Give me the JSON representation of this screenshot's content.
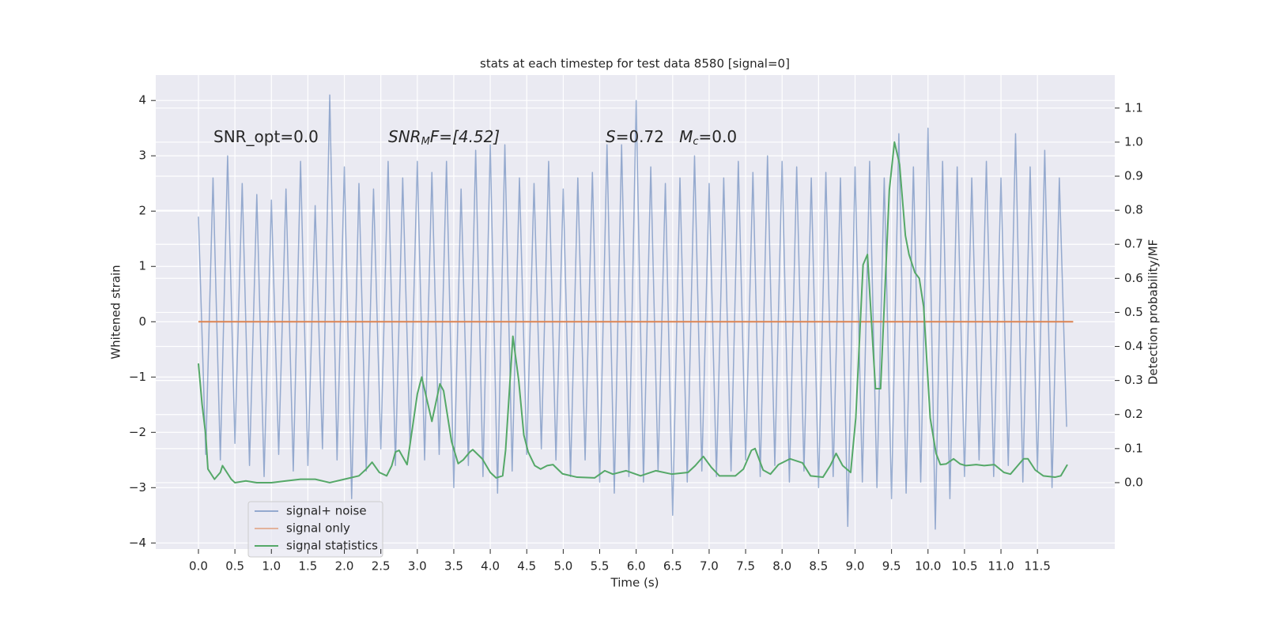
{
  "chart_data": {
    "type": "line",
    "title": "stats at each timestep for test data 8580 [signal=0]",
    "xlabel": "Time (s)",
    "ylabel": "Whitened strain",
    "y2label": "Detection probability/MF",
    "annotations": [
      {
        "parts": [
          "SNR_opt=0.0"
        ]
      },
      {
        "parts": [
          "SNR",
          "M",
          "F=[4.52]"
        ]
      },
      {
        "parts": [
          "S",
          "=0.72   ",
          "M",
          "c",
          "=0.0"
        ]
      }
    ],
    "xlim": [
      -0.585,
      12.56
    ],
    "ylim": [
      -4.11,
      4.46
    ],
    "y2lim": [
      -0.195,
      1.197
    ],
    "xticks": [
      {
        "value": 0,
        "label": "0.0"
      },
      0.5,
      {
        "value": 1,
        "label": "1.0"
      },
      1.5,
      {
        "value": 2,
        "label": "2.0"
      },
      2.5,
      {
        "value": 3,
        "label": "3.0"
      },
      3.5,
      {
        "value": 4,
        "label": "4.0"
      },
      4.5,
      {
        "value": 5,
        "label": "5.0"
      },
      5.5,
      {
        "value": 6,
        "label": "6.0"
      },
      6.5,
      {
        "value": 7,
        "label": "7.0"
      },
      7.5,
      {
        "value": 8,
        "label": "8.0"
      },
      8.5,
      {
        "value": 9,
        "label": "9.0"
      },
      9.5,
      {
        "value": 10,
        "label": "10.0"
      },
      10.5,
      {
        "value": 11,
        "label": "11.0"
      },
      11.5
    ],
    "yticks": [
      {
        "value": -4,
        "label": "−4"
      },
      {
        "value": -3,
        "label": "−3"
      },
      {
        "value": -2,
        "label": "−2"
      },
      {
        "value": -1,
        "label": "−1"
      },
      0,
      1,
      2,
      3,
      4
    ],
    "y2ticks": [
      {
        "value": 0,
        "label": "0.0"
      },
      0.1,
      0.2,
      0.3,
      0.4,
      0.5,
      0.6,
      0.7,
      0.8,
      0.9,
      {
        "value": 1,
        "label": "1.0"
      },
      1.1
    ],
    "grid": true,
    "legend": "lower left",
    "series": [
      {
        "name": "signal+ noise",
        "color": "#4c72b0",
        "x": [
          0.0,
          0.1,
          0.2,
          0.3,
          0.4,
          0.5,
          0.6,
          0.7,
          0.8,
          0.9,
          1.0,
          1.1,
          1.2,
          1.3,
          1.4,
          1.5,
          1.6,
          1.7,
          1.8,
          1.9,
          2.0,
          2.1,
          2.2,
          2.3,
          2.4,
          2.5,
          2.6,
          2.7,
          2.8,
          2.9,
          3.0,
          3.1,
          3.2,
          3.3,
          3.4,
          3.5,
          3.6,
          3.7,
          3.8,
          3.9,
          4.0,
          4.1,
          4.2,
          4.3,
          4.4,
          4.5,
          4.6,
          4.7,
          4.8,
          4.9,
          5.0,
          5.1,
          5.2,
          5.3,
          5.4,
          5.5,
          5.6,
          5.7,
          5.8,
          5.9,
          6.0,
          6.1,
          6.2,
          6.3,
          6.4,
          6.5,
          6.6,
          6.7,
          6.8,
          6.9,
          7.0,
          7.1,
          7.2,
          7.3,
          7.4,
          7.5,
          7.6,
          7.7,
          7.8,
          7.9,
          8.0,
          8.1,
          8.2,
          8.3,
          8.4,
          8.5,
          8.6,
          8.7,
          8.8,
          8.9,
          9.0,
          9.1,
          9.2,
          9.3,
          9.4,
          9.5,
          9.6,
          9.7,
          9.8,
          9.9,
          10.0,
          10.1,
          10.2,
          10.3,
          10.4,
          10.5,
          10.6,
          10.7,
          10.8,
          10.9,
          11.0,
          11.1,
          11.2,
          11.3,
          11.4,
          11.5,
          11.6,
          11.7,
          11.8,
          11.9
        ],
        "values": [
          1.9,
          -2.4,
          2.6,
          -2.5,
          3.0,
          -2.2,
          2.5,
          -2.6,
          2.3,
          -2.8,
          2.2,
          -2.4,
          2.4,
          -2.7,
          2.9,
          -2.6,
          2.1,
          -2.3,
          4.1,
          -2.5,
          2.8,
          -3.2,
          2.5,
          -2.7,
          2.4,
          -2.3,
          2.9,
          -2.6,
          2.6,
          -2.2,
          2.9,
          -2.5,
          2.7,
          -2.4,
          2.9,
          -3.0,
          2.4,
          -2.6,
          3.1,
          -2.8,
          3.2,
          -3.1,
          3.2,
          -2.7,
          2.6,
          -2.4,
          2.5,
          -2.3,
          2.9,
          -2.5,
          2.4,
          -2.8,
          2.6,
          -2.5,
          2.7,
          -2.9,
          3.2,
          -3.1,
          3.2,
          -2.8,
          4.0,
          -2.9,
          2.8,
          -2.7,
          2.5,
          -3.5,
          2.6,
          -2.9,
          3.0,
          -2.7,
          2.5,
          -2.8,
          2.6,
          -2.7,
          2.9,
          -2.5,
          2.7,
          -2.8,
          3.0,
          -2.6,
          2.9,
          -2.9,
          2.8,
          -2.7,
          2.6,
          -3.0,
          2.7,
          -2.8,
          2.6,
          -3.7,
          2.8,
          -2.9,
          2.9,
          -3.0,
          2.6,
          -3.2,
          3.4,
          -3.1,
          2.8,
          -2.9,
          3.5,
          -3.75,
          2.9,
          -3.2,
          2.8,
          -2.8,
          2.6,
          -2.5,
          2.9,
          -2.8,
          2.6,
          -2.6,
          3.4,
          -2.9,
          2.8,
          -2.7,
          3.1,
          -3.0,
          2.6,
          -1.9
        ]
      },
      {
        "name": "signal only",
        "color": "#dd8452",
        "x": [
          0,
          11.99
        ],
        "values": [
          0,
          0
        ]
      },
      {
        "name": "signal statistics",
        "color": "#55a868",
        "axis": "y2",
        "x": [
          0,
          0.05,
          0.1,
          0.13,
          0.22,
          0.3,
          0.33,
          0.45,
          0.5,
          0.65,
          0.8,
          1.0,
          1.2,
          1.4,
          1.6,
          1.8,
          2.0,
          2.2,
          2.3,
          2.38,
          2.48,
          2.58,
          2.65,
          2.7,
          2.75,
          2.86,
          3.0,
          3.06,
          3.2,
          3.31,
          3.36,
          3.47,
          3.56,
          3.63,
          3.72,
          3.76,
          3.89,
          4.0,
          4.08,
          4.17,
          4.21,
          4.31,
          4.39,
          4.46,
          4.52,
          4.61,
          4.69,
          4.78,
          4.86,
          4.99,
          5.19,
          5.43,
          5.57,
          5.68,
          5.86,
          6.06,
          6.27,
          6.49,
          6.71,
          6.81,
          6.92,
          7.03,
          7.14,
          7.36,
          7.47,
          7.58,
          7.63,
          7.74,
          7.84,
          7.95,
          8.11,
          8.28,
          8.39,
          8.56,
          8.66,
          8.74,
          8.83,
          8.94,
          9.01,
          9.11,
          9.17,
          9.28,
          9.35,
          9.47,
          9.54,
          9.61,
          9.69,
          9.74,
          9.82,
          9.88,
          9.94,
          10.03,
          10.11,
          10.17,
          10.25,
          10.35,
          10.44,
          10.52,
          10.66,
          10.77,
          10.91,
          11.04,
          11.13,
          11.23,
          11.31,
          11.37,
          11.47,
          11.58,
          11.74,
          11.82,
          11.91
        ],
        "values": [
          0.35,
          0.23,
          0.14,
          0.04,
          0.01,
          0.03,
          0.05,
          0.01,
          0.0,
          0.005,
          0.0,
          0.0,
          0.005,
          0.01,
          0.01,
          0.0,
          0.01,
          0.02,
          0.04,
          0.06,
          0.03,
          0.02,
          0.05,
          0.09,
          0.095,
          0.053,
          0.26,
          0.31,
          0.18,
          0.29,
          0.27,
          0.12,
          0.056,
          0.067,
          0.09,
          0.097,
          0.07,
          0.03,
          0.014,
          0.02,
          0.095,
          0.43,
          0.3,
          0.14,
          0.09,
          0.05,
          0.04,
          0.05,
          0.053,
          0.026,
          0.016,
          0.014,
          0.035,
          0.025,
          0.035,
          0.02,
          0.035,
          0.025,
          0.03,
          0.05,
          0.077,
          0.045,
          0.02,
          0.02,
          0.04,
          0.095,
          0.1,
          0.037,
          0.025,
          0.053,
          0.07,
          0.058,
          0.02,
          0.016,
          0.05,
          0.086,
          0.05,
          0.03,
          0.19,
          0.64,
          0.67,
          0.276,
          0.276,
          0.86,
          1.0,
          0.935,
          0.726,
          0.67,
          0.617,
          0.6,
          0.517,
          0.19,
          0.086,
          0.053,
          0.055,
          0.07,
          0.055,
          0.05,
          0.053,
          0.05,
          0.053,
          0.03,
          0.025,
          0.05,
          0.07,
          0.07,
          0.037,
          0.02,
          0.016,
          0.02,
          0.053
        ]
      }
    ]
  }
}
